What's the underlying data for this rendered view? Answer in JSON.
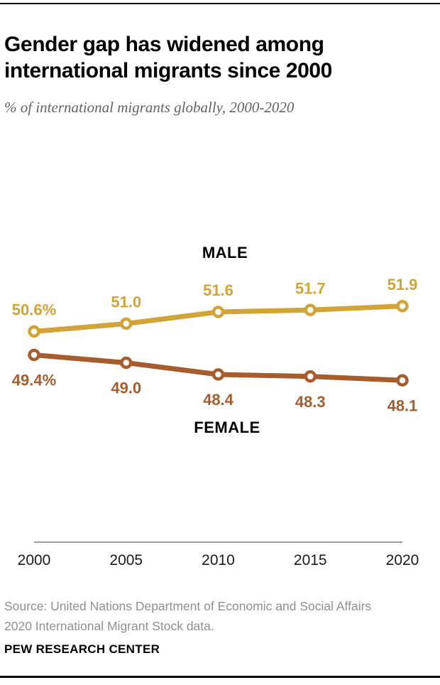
{
  "header": {
    "title": "Gender gap has widened among international migrants since 2000",
    "subtitle": "% of international migrants globally, 2000-2020"
  },
  "chart_data": {
    "type": "line",
    "title": "Gender gap has widened among international migrants since 2000",
    "subtitle": "% of international migrants globally, 2000-2020",
    "x": [
      2000,
      2005,
      2010,
      2015,
      2020
    ],
    "x_tick_labels": [
      "2000",
      "2005",
      "2010",
      "2015",
      "2020"
    ],
    "series": [
      {
        "name": "MALE",
        "values": [
          50.6,
          51.0,
          51.6,
          51.7,
          51.9
        ],
        "point_labels": [
          "50.6%",
          "51.0",
          "51.6",
          "51.7",
          "51.9"
        ],
        "color": "#D1A437",
        "label_position": "above"
      },
      {
        "name": "FEMALE",
        "values": [
          49.4,
          49.0,
          48.4,
          48.3,
          48.1
        ],
        "point_labels": [
          "49.4%",
          "49.0",
          "48.4",
          "48.3",
          "48.1"
        ],
        "color": "#A65C2C",
        "label_position": "below"
      }
    ],
    "series_label_color": "#000000",
    "axis_line_color": "#9B9B9B",
    "ylim": [
      47.5,
      52.5
    ],
    "grid": false,
    "legend": "series labels placed above/below lines"
  },
  "source": {
    "lines": [
      "Source: United Nations Department of Economic and Social Affairs",
      "2020 International Migrant Stock data."
    ]
  },
  "footer": {
    "brand": "PEW RESEARCH CENTER"
  }
}
